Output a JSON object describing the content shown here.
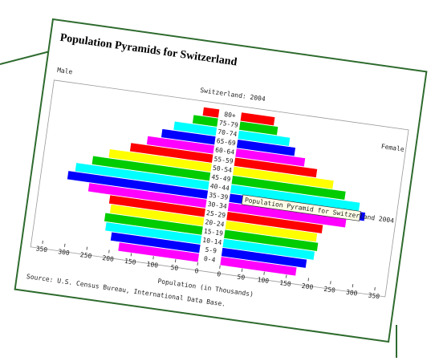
{
  "chart_data": {
    "type": "pyramid",
    "title": "Population Pyramids for Switzerland",
    "subtitle": "Switzerland: 2004",
    "left_label": "Male",
    "right_label": "Female",
    "xlabel": "Population (in Thousands)",
    "source": "Source: U.S. Census Bureau, International Data Base.",
    "annotation": "Population Pyramid for Switzerland 2004",
    "categories": [
      "0-4",
      "5-9",
      "10-14",
      "15-19",
      "20-24",
      "25-29",
      "30-34",
      "35-39",
      "40-44",
      "45-49",
      "50-54",
      "55-59",
      "60-64",
      "65-69",
      "70-74",
      "75-79",
      "80+"
    ],
    "colors": [
      "#ff00ff",
      "#0000ff",
      "#00ffff",
      "#00cc00",
      "#ffff00",
      "#ff0000",
      "#ff00ff",
      "#0000ff",
      "#00ffff",
      "#00cc00",
      "#ffff00",
      "#ff0000",
      "#ff00ff",
      "#0000ff",
      "#00ffff",
      "#00cc00",
      "#ff0000"
    ],
    "series": [
      {
        "name": "Male",
        "values": [
          180,
          200,
          215,
          220,
          210,
          215,
          265,
          315,
          300,
          265,
          230,
          185,
          150,
          120,
          95,
          55,
          35
        ]
      },
      {
        "name": "Female",
        "values": [
          170,
          190,
          205,
          210,
          205,
          215,
          265,
          305,
          290,
          255,
          225,
          185,
          155,
          130,
          115,
          85,
          75
        ]
      }
    ],
    "xlim": [
      0,
      350
    ],
    "xticks": [
      0,
      50,
      100,
      150,
      200,
      250,
      300,
      350
    ]
  }
}
